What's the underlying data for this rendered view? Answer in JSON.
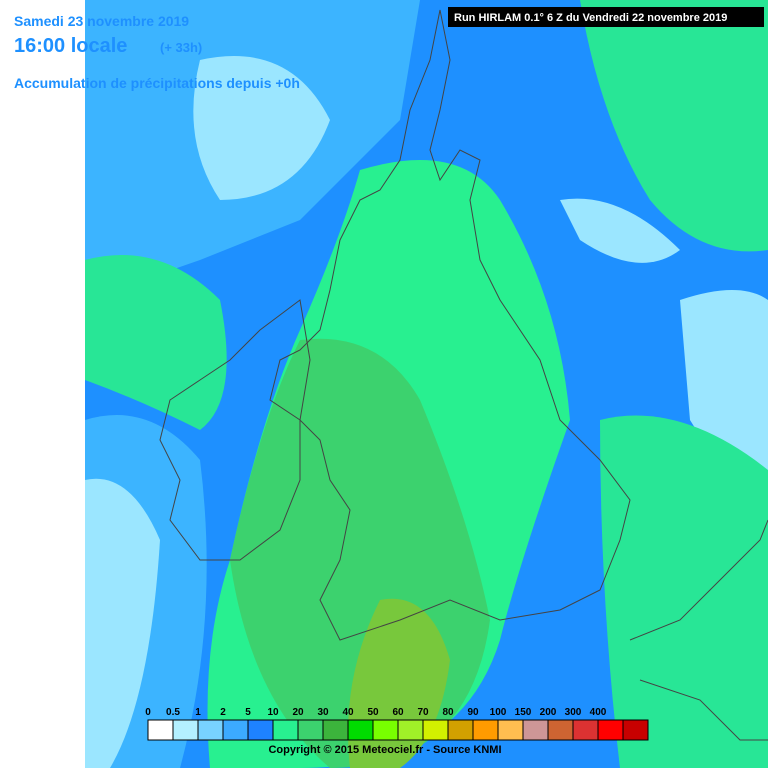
{
  "header": {
    "date": "Samedi 23 novembre 2019",
    "time": "16:00 locale",
    "offset": "(+ 33h)",
    "subtitle": "Accumulation de précipitations depuis +0h",
    "run": "Run HIRLAM 0.1° 6 Z du Vendredi 22 novembre 2019"
  },
  "legend": {
    "ticks": [
      0,
      0.5,
      1,
      2,
      5,
      10,
      20,
      30,
      40,
      50,
      60,
      70,
      80,
      90,
      100,
      150,
      200,
      300,
      400
    ],
    "colors": [
      "#ffffff",
      "#b4f0ff",
      "#78d2ff",
      "#3caaff",
      "#1e82ff",
      "#28f090",
      "#3cd26e",
      "#3cb43c",
      "#00dc00",
      "#78ff00",
      "#a0f028",
      "#d2f000",
      "#d2a000",
      "#ff9b00",
      "#ffbe50",
      "#cd9696",
      "#cd6432",
      "#dc3232",
      "#ff0000",
      "#c80000"
    ]
  },
  "footer": {
    "copyright": "Copyright © 2015 Meteociel.fr - Source KNMI"
  }
}
